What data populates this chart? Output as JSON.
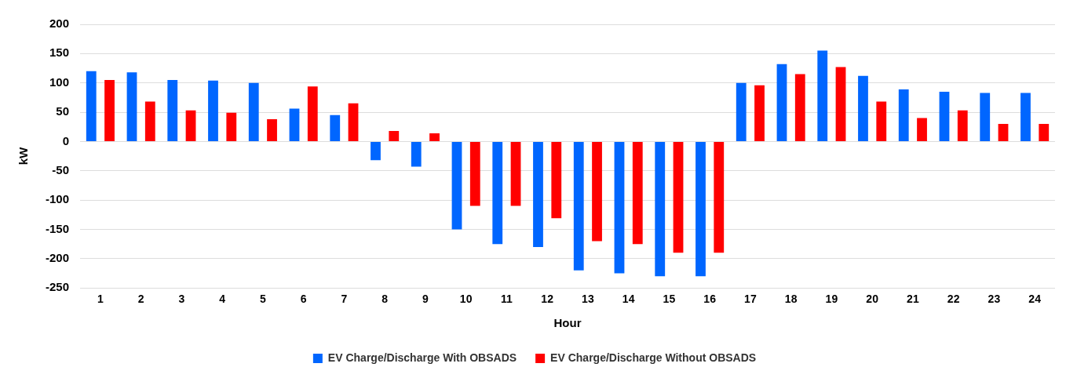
{
  "chart_data": {
    "type": "bar",
    "xlabel": "Hour",
    "ylabel": "kW",
    "categories": [
      "1",
      "2",
      "3",
      "4",
      "5",
      "6",
      "7",
      "8",
      "9",
      "10",
      "11",
      "12",
      "13",
      "14",
      "15",
      "16",
      "17",
      "18",
      "19",
      "20",
      "21",
      "22",
      "23",
      "24"
    ],
    "series": [
      {
        "name": "EV Charge/Discharge With OBSADS",
        "color": "#0066ff",
        "values": [
          120,
          118,
          105,
          104,
          100,
          56,
          45,
          -32,
          -43,
          -150,
          -175,
          -180,
          -220,
          -225,
          -230,
          -230,
          100,
          132,
          155,
          112,
          89,
          85,
          83,
          83
        ]
      },
      {
        "name": "EV Charge/Discharge Without OBSADS",
        "color": "#ff0000",
        "values": [
          105,
          68,
          53,
          49,
          38,
          94,
          65,
          18,
          14,
          -110,
          -110,
          -131,
          -170,
          -175,
          -190,
          -190,
          96,
          115,
          127,
          68,
          40,
          53,
          30,
          30
        ]
      }
    ],
    "ylim": [
      -250,
      200
    ],
    "yticks": [
      -250,
      -200,
      -150,
      -100,
      -50,
      0,
      50,
      100,
      150,
      200
    ],
    "grid": "y",
    "legend": "bottom"
  }
}
